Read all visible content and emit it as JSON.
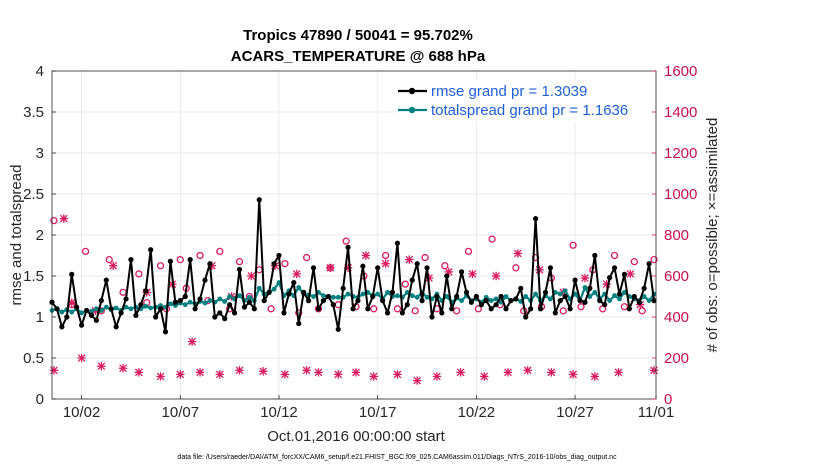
{
  "chart_data": {
    "type": "line",
    "title_line1": "Tropics 47890 / 50041 = 95.702%",
    "title_line2": "ACARS_TEMPERATURE @ 688 hPa",
    "xlabel": "Oct.01,2016 00:00:00 start",
    "ylabel_left": "rmse and totalspread",
    "ylabel_right": "# of obs: o=possible; ×=assimilated",
    "footer": "data file: /Users/raeder/DAI/ATM_forcXX/CAM6_setup/f.e21.FHIST_BGC.f09_025.CAM6assim.011/Diags_NTrS_2016-10/obs_diag_output.nc",
    "x_range": [
      0.5,
      31.1
    ],
    "ylim_left": [
      0,
      4
    ],
    "ylim_right": [
      0,
      1600
    ],
    "x_ticks": [
      2,
      7,
      12,
      17,
      22,
      27,
      32
    ],
    "x_tick_labels": [
      "10/02",
      "10/07",
      "10/12",
      "10/17",
      "10/22",
      "10/27",
      "11/01"
    ],
    "y_ticks_left": [
      0,
      0.5,
      1,
      1.5,
      2,
      2.5,
      3,
      3.5,
      4
    ],
    "y_tick_labels_left": [
      "0",
      "0.5",
      "1",
      "1.5",
      "2",
      "2.5",
      "3",
      "3.5",
      "4"
    ],
    "y_ticks_right": [
      0,
      200,
      400,
      600,
      800,
      1000,
      1200,
      1400,
      1600
    ],
    "y_tick_labels_right": [
      "0",
      "200",
      "400",
      "600",
      "800",
      "1000",
      "1200",
      "1400",
      "1600"
    ],
    "colors": {
      "rmse": "#000000",
      "spread": "#008080",
      "obs": "#d81b60",
      "grid": "#e3e3e3"
    },
    "x_step_days": 0.25,
    "x_start": 0.5,
    "series": [
      {
        "name": "rmse",
        "legend": "rmse grand pr = 1.3039",
        "values": [
          1.18,
          1.1,
          0.88,
          1.0,
          1.52,
          1.12,
          0.9,
          1.08,
          1.02,
          0.96,
          1.2,
          1.45,
          1.1,
          0.88,
          1.05,
          1.22,
          1.7,
          1.02,
          1.15,
          1.32,
          1.82,
          1.0,
          1.1,
          0.82,
          1.68,
          1.18,
          1.2,
          1.25,
          1.7,
          1.1,
          1.22,
          1.45,
          1.65,
          1.0,
          1.05,
          0.98,
          1.15,
          1.05,
          1.58,
          1.12,
          1.18,
          1.1,
          2.43,
          1.2,
          1.3,
          1.65,
          1.75,
          1.05,
          1.28,
          1.42,
          0.92,
          1.3,
          1.2,
          1.6,
          1.1,
          1.2,
          1.25,
          1.15,
          0.85,
          1.35,
          1.85,
          1.1,
          1.2,
          1.62,
          1.1,
          1.25,
          1.6,
          1.2,
          1.05,
          1.3,
          1.9,
          1.05,
          1.15,
          1.45,
          1.65,
          1.2,
          1.6,
          1.0,
          1.25,
          1.05,
          1.5,
          1.1,
          1.25,
          1.55,
          1.3,
          1.18,
          1.25,
          1.15,
          1.2,
          1.1,
          1.15,
          1.25,
          1.1,
          1.2,
          1.22,
          1.35,
          1.0,
          1.1,
          2.2,
          1.1,
          1.3,
          1.6,
          1.05,
          1.2,
          1.25,
          1.1,
          1.45,
          1.2,
          1.18,
          1.35,
          1.75,
          1.2,
          1.15,
          1.48,
          1.6,
          1.28,
          1.52,
          1.1,
          1.25,
          1.18,
          1.35,
          1.65,
          1.2
        ]
      },
      {
        "name": "totalspread",
        "legend": "totalspread grand pr = 1.1636",
        "values": [
          1.08,
          1.1,
          1.06,
          1.09,
          1.06,
          1.1,
          1.05,
          1.08,
          1.07,
          1.1,
          1.08,
          1.12,
          1.09,
          1.11,
          1.08,
          1.12,
          1.1,
          1.12,
          1.1,
          1.13,
          1.11,
          1.12,
          1.14,
          1.12,
          1.16,
          1.14,
          1.17,
          1.15,
          1.18,
          1.16,
          1.19,
          1.17,
          1.2,
          1.18,
          1.22,
          1.19,
          1.25,
          1.22,
          1.26,
          1.2,
          1.24,
          1.2,
          1.35,
          1.28,
          1.3,
          1.34,
          1.42,
          1.26,
          1.32,
          1.26,
          1.36,
          1.28,
          1.27,
          1.25,
          1.3,
          1.26,
          1.25,
          1.24,
          1.24,
          1.24,
          1.28,
          1.25,
          1.24,
          1.28,
          1.3,
          1.26,
          1.28,
          1.22,
          1.3,
          1.25,
          1.26,
          1.24,
          1.3,
          1.26,
          1.24,
          1.3,
          1.24,
          1.22,
          1.28,
          1.2,
          1.25,
          1.18,
          1.23,
          1.2,
          1.26,
          1.2,
          1.22,
          1.18,
          1.24,
          1.2,
          1.22,
          1.18,
          1.25,
          1.2,
          1.22,
          1.19,
          1.25,
          1.2,
          1.28,
          1.2,
          1.26,
          1.22,
          1.3,
          1.28,
          1.32,
          1.22,
          1.28,
          1.2,
          1.36,
          1.25,
          1.3,
          1.22,
          1.28,
          1.2,
          1.26,
          1.22,
          1.3,
          1.25,
          1.22,
          1.2,
          1.25,
          1.2,
          1.28
        ]
      },
      {
        "name": "obs_possible",
        "marker": "o",
        "x": [
          0.6,
          1.5,
          2.2,
          3.0,
          3.4,
          4.1,
          4.9,
          5.3,
          6.0,
          6.3,
          7.0,
          7.3,
          8.0,
          8.4,
          9.0,
          9.5,
          10.0,
          10.5,
          11.0,
          11.6,
          12.3,
          13.0,
          13.4,
          14.0,
          14.6,
          15.0,
          15.4,
          15.9,
          16.3,
          16.8,
          17.4,
          18.0,
          18.4,
          18.9,
          19.4,
          20.0,
          20.4,
          21.0,
          21.6,
          22.1,
          22.8,
          23.2,
          24.0,
          24.4,
          25.0,
          25.3,
          25.8,
          26.4,
          26.9,
          27.3,
          27.9,
          28.4,
          29.0,
          29.5,
          30.0,
          30.4,
          31.0
        ],
        "values": [
          870,
          460,
          720,
          430,
          680,
          520,
          610,
          470,
          650,
          440,
          680,
          540,
          700,
          480,
          720,
          440,
          670,
          500,
          630,
          440,
          660,
          420,
          690,
          440,
          640,
          460,
          770,
          450,
          600,
          440,
          700,
          440,
          560,
          430,
          690,
          440,
          650,
          430,
          720,
          440,
          780,
          460,
          640,
          430,
          690,
          450,
          590,
          430,
          750,
          450,
          630,
          440,
          700,
          450,
          670,
          430,
          680
        ]
      },
      {
        "name": "obs_assimilated",
        "marker": "x",
        "x": [
          0.6,
          1.1,
          1.5,
          2.0,
          2.7,
          3.0,
          3.6,
          4.1,
          4.9,
          5.3,
          6.0,
          6.6,
          7.0,
          7.6,
          8.0,
          8.6,
          9.0,
          9.6,
          10.0,
          10.6,
          11.2,
          11.8,
          12.3,
          12.9,
          13.4,
          14.0,
          14.6,
          15.0,
          15.5,
          15.9,
          16.4,
          16.8,
          17.4,
          18.0,
          18.6,
          19.0,
          19.6,
          20.0,
          20.6,
          21.2,
          21.8,
          22.4,
          23.0,
          23.6,
          24.1,
          24.6,
          25.2,
          25.8,
          26.4,
          26.9,
          27.5,
          28.0,
          28.6,
          29.2,
          29.8,
          30.3,
          31.0
        ],
        "values": [
          140,
          880,
          470,
          200,
          430,
          160,
          650,
          150,
          130,
          520,
          110,
          560,
          120,
          280,
          130,
          650,
          120,
          500,
          140,
          600,
          135,
          650,
          120,
          610,
          140,
          130,
          640,
          120,
          640,
          130,
          700,
          110,
          660,
          120,
          680,
          90,
          590,
          110,
          620,
          130,
          610,
          110,
          600,
          130,
          710,
          140,
          630,
          130,
          520,
          120,
          590,
          110,
          560,
          130,
          610,
          460,
          140
        ]
      }
    ]
  }
}
